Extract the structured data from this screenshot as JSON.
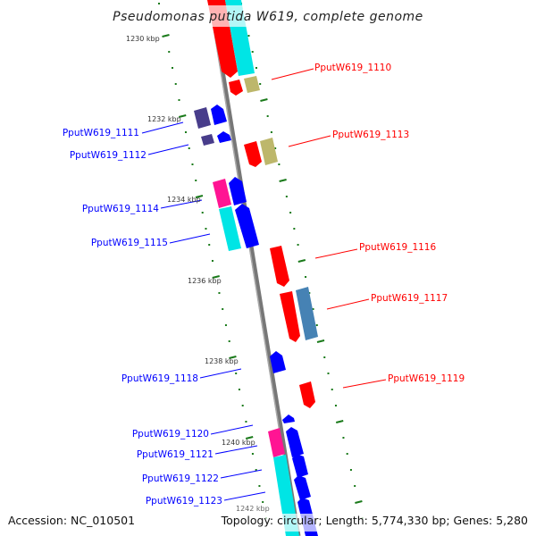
{
  "title": "Pseudomonas putida W619, complete genome",
  "footer": {
    "accession": "Accession: NC_010501",
    "topology": "Topology: circular; Length: 5,774,330 bp; Genes: 5,280"
  },
  "ticks": [
    "1230 kbp",
    "1232 kbp",
    "1234 kbp",
    "1236 kbp",
    "1238 kbp",
    "1240 kbp",
    "1242 kbp"
  ],
  "genes": {
    "g1110": "PputW619_1110",
    "g1111": "PputW619_1111",
    "g1112": "PputW619_1112",
    "g1113": "PputW619_1113",
    "g1114": "PputW619_1114",
    "g1115": "PputW619_1115",
    "g1116": "PputW619_1116",
    "g1117": "PputW619_1117",
    "g1118": "PputW619_1118",
    "g1119": "PputW619_1119",
    "g1120": "PputW619_1120",
    "g1121": "PputW619_1121",
    "g1122": "PputW619_1122",
    "g1123": "PputW619_1123"
  },
  "colors": {
    "forward": "#ff0000",
    "reverse": "#0000ff",
    "tick": "#1a7a1a",
    "backbone": "#888888"
  }
}
